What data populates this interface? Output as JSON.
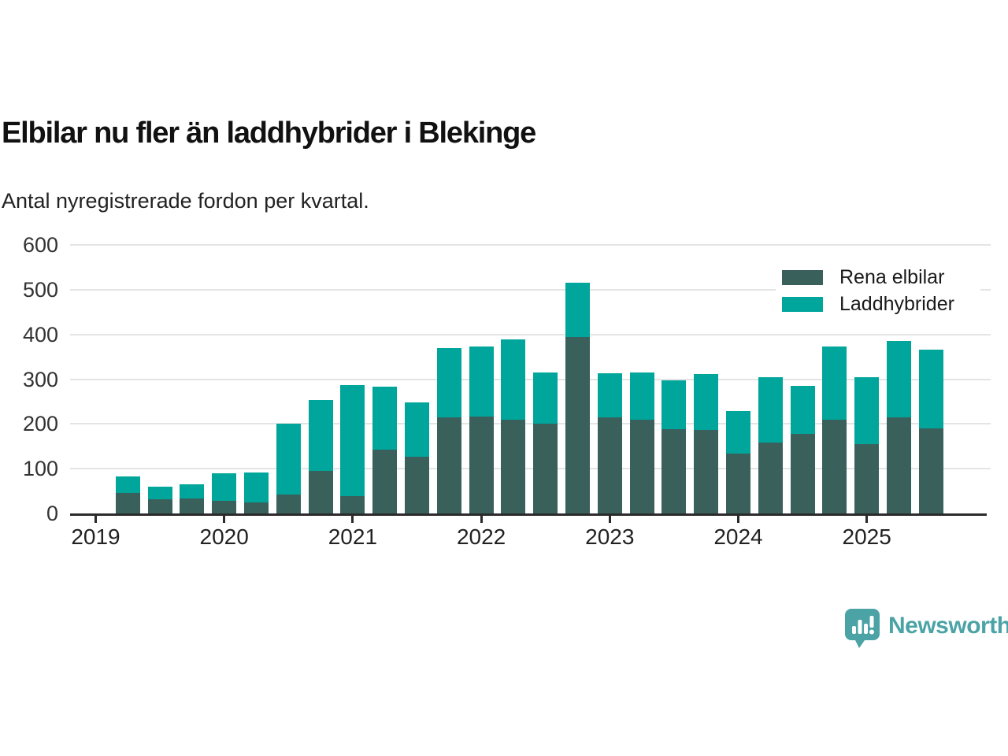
{
  "header": {
    "title": "Elbilar nu fler än laddhybrider i Blekinge",
    "subtitle": "Antal nyregistrerade fordon per kvartal."
  },
  "chart_data": {
    "type": "bar",
    "stacked": true,
    "title": "Elbilar nu fler än laddhybrider i Blekinge",
    "subtitle": "Antal nyregistrerade fordon per kvartal.",
    "categories": [
      "2019 Q2",
      "2019 Q3",
      "2019 Q4",
      "2020 Q1",
      "2020 Q2",
      "2020 Q3",
      "2020 Q4",
      "2021 Q1",
      "2021 Q2",
      "2021 Q3",
      "2021 Q4",
      "2022 Q1",
      "2022 Q2",
      "2022 Q3",
      "2022 Q4",
      "2023 Q1",
      "2023 Q2",
      "2023 Q3",
      "2023 Q4",
      "2024 Q1",
      "2024 Q2",
      "2024 Q3",
      "2024 Q4",
      "2025 Q1",
      "2025 Q2",
      "2025 Q3"
    ],
    "series": [
      {
        "name": "Rena elbilar",
        "color": "#3a605c",
        "values": [
          46,
          32,
          34,
          29,
          24,
          43,
          95,
          39,
          142,
          127,
          214,
          216,
          210,
          201,
          394,
          214,
          210,
          189,
          187,
          133,
          158,
          177,
          210,
          155,
          215,
          190
        ]
      },
      {
        "name": "Laddhybrider",
        "color": "#00a59b",
        "values": [
          36,
          28,
          31,
          60,
          67,
          158,
          159,
          248,
          141,
          121,
          156,
          158,
          179,
          114,
          121,
          99,
          106,
          108,
          124,
          96,
          147,
          109,
          164,
          150,
          170,
          177
        ]
      }
    ],
    "x_tick_labels": [
      "2019",
      "2020",
      "2021",
      "2022",
      "2023",
      "2024",
      "2025"
    ],
    "y_ticks": [
      0,
      100,
      200,
      300,
      400,
      500,
      600
    ],
    "ylim": [
      0,
      600
    ],
    "grid": "horizontal",
    "legend_position": "top-right"
  },
  "legend": {
    "item1": "Rena elbilar",
    "item2": "Laddhybrider"
  },
  "footer": {
    "brand": "Newsworthy",
    "brand_color": "#4ba3a6"
  },
  "colors": {
    "axis": "#2b2b2b",
    "gridline": "#e4e4e4",
    "title_text": "#111111",
    "label_text": "#333333"
  }
}
